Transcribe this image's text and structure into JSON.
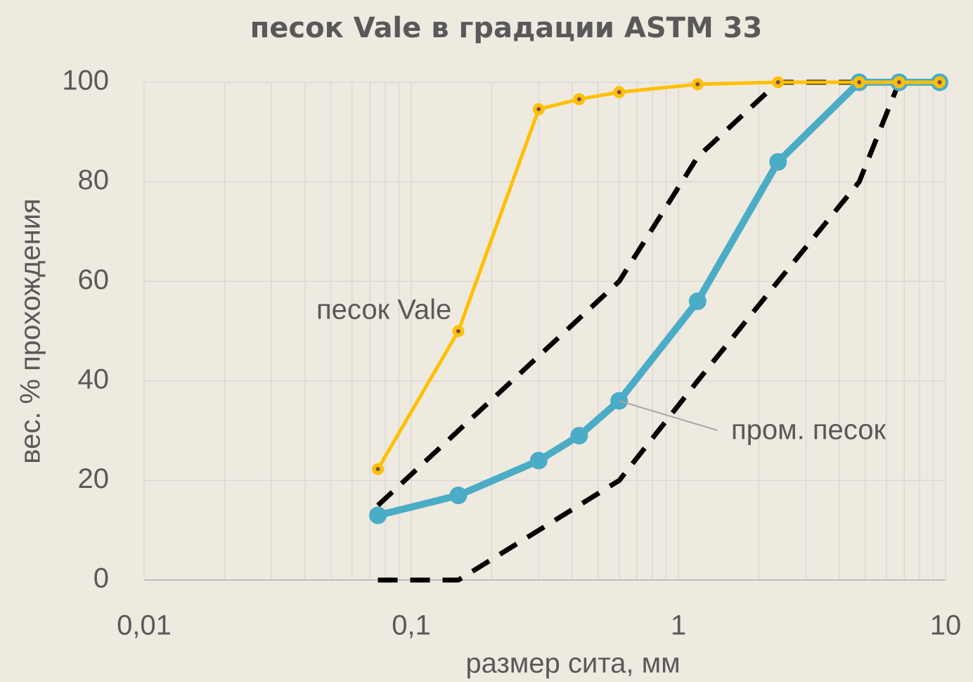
{
  "chart_data": {
    "type": "line",
    "title": "песок Vale в градации ASTM 33",
    "xlabel": "размер сита, мм",
    "ylabel": "вес. % прохождения",
    "xscale": "log",
    "xlim": [
      0.01,
      10
    ],
    "xticks": [
      {
        "value": 0.01,
        "label": "0,01"
      },
      {
        "value": 0.1,
        "label": "0,1"
      },
      1,
      10
    ],
    "ylim": [
      0,
      100
    ],
    "yticks": [
      0,
      20,
      40,
      60,
      80,
      100
    ],
    "grid": true,
    "series": [
      {
        "color": "#000000",
        "style": "dashed",
        "x": [
          0.075,
          0.15,
          0.3,
          0.6,
          1.18,
          2.36,
          4.75
        ],
        "values": [
          15,
          30,
          45,
          60,
          85,
          100,
          100
        ]
      },
      {
        "color": "#000000",
        "style": "dashed",
        "x": [
          0.075,
          0.15,
          0.3,
          0.6,
          1.18,
          2.36,
          4.75,
          6.7
        ],
        "values": [
          0,
          0,
          10,
          20,
          40,
          60,
          80,
          100
        ]
      },
      {
        "name": "пром. песок",
        "color": "#4BACC6",
        "x": [
          0.075,
          0.15,
          0.3,
          0.425,
          0.6,
          1.18,
          2.36,
          4.75,
          6.7,
          9.5
        ],
        "values": [
          13,
          17,
          24,
          29,
          36,
          56,
          84,
          100,
          100,
          100
        ]
      },
      {
        "name": "песок Vale",
        "color": "#FFC000",
        "x": [
          0.075,
          0.15,
          0.3,
          0.425,
          0.6,
          1.18,
          2.36,
          4.75,
          6.7,
          9.5
        ],
        "values": [
          22.3,
          50,
          94.6,
          96.6,
          98,
          99.6,
          100,
          100,
          100,
          100
        ]
      }
    ]
  }
}
